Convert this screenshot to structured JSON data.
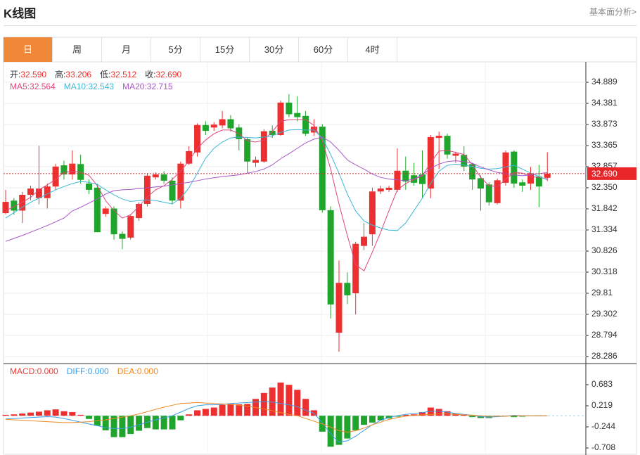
{
  "header": {
    "title": "K线图",
    "link": "基本面分析>"
  },
  "tabs": [
    "日",
    "周",
    "月",
    "5分",
    "15分",
    "30分",
    "60分",
    "4时"
  ],
  "active_tab": 0,
  "chart_data": [
    {
      "type": "candlestick",
      "legend": [
        {
          "name": "开:",
          "label": "32.590"
        },
        {
          "name": "高:",
          "label": "33.206"
        },
        {
          "name": "低:",
          "label": "32.512"
        },
        {
          "name": "收:",
          "label": "32.690"
        }
      ],
      "up_color": "#ee2f2f",
      "down_color": "#1fa52b",
      "open": [
        31.74,
        32.04,
        31.8,
        32.18,
        32.1,
        32.1,
        32.38,
        32.89,
        32.67,
        32.92,
        32.45,
        32.35,
        31.72,
        31.85,
        31.24,
        31.15,
        31.62,
        31.96,
        32.6,
        32.67,
        32.52,
        32.04,
        32.93,
        33.2,
        33.86,
        33.8,
        33.85,
        34.0,
        33.8,
        33.52,
        32.95,
        32.98,
        33.72,
        33.62,
        34.4,
        34.15,
        34.08,
        33.68,
        33.82,
        31.81,
        28.86,
        30.06,
        29.81,
        30.95,
        31.23,
        32.26,
        32.3,
        32.3,
        32.76,
        32.65,
        32.67,
        32.33,
        33.55,
        33.6,
        33.12,
        33.14,
        32.92,
        32.58,
        32.43,
        31.98,
        32.47,
        33.22,
        32.48,
        32.45,
        32.62,
        32.59
      ],
      "high": [
        32.3,
        32.1,
        32.25,
        32.4,
        33.36,
        32.45,
        32.93,
        33.0,
        33.25,
        33.15,
        32.55,
        32.45,
        31.9,
        31.9,
        31.3,
        31.7,
        32.0,
        32.7,
        32.72,
        32.75,
        32.6,
        32.98,
        33.35,
        33.9,
        33.95,
        33.93,
        34.2,
        34.1,
        33.88,
        33.55,
        33.1,
        33.76,
        33.85,
        34.45,
        34.6,
        34.55,
        34.2,
        34.0,
        33.88,
        31.9,
        30.6,
        30.31,
        31.05,
        31.5,
        32.35,
        32.4,
        32.4,
        33.3,
        33.1,
        32.95,
        33.25,
        33.62,
        33.7,
        33.65,
        33.22,
        33.35,
        32.95,
        32.65,
        32.48,
        32.57,
        33.25,
        33.25,
        32.55,
        32.85,
        32.9,
        33.206
      ],
      "low": [
        31.71,
        31.7,
        31.5,
        32.05,
        31.95,
        31.85,
        32.3,
        32.55,
        32.55,
        32.45,
        32.2,
        31.28,
        31.65,
        31.1,
        30.87,
        31.1,
        31.55,
        31.9,
        32.55,
        32.45,
        31.95,
        31.85,
        32.9,
        33.1,
        33.62,
        33.72,
        33.78,
        33.7,
        33.25,
        32.7,
        32.85,
        32.95,
        33.55,
        33.6,
        34.05,
        33.95,
        33.6,
        33.6,
        31.75,
        29.2,
        28.4,
        29.55,
        29.3,
        30.85,
        30.95,
        32.2,
        32.25,
        32.25,
        32.3,
        32.4,
        32.1,
        32.1,
        32.8,
        33.05,
        32.95,
        32.75,
        32.3,
        31.8,
        31.92,
        31.95,
        32.4,
        32.35,
        32.25,
        32.3,
        31.88,
        32.512
      ],
      "close": [
        32.01,
        31.8,
        32.18,
        32.33,
        32.33,
        32.38,
        32.86,
        32.67,
        32.93,
        32.54,
        32.3,
        31.28,
        31.85,
        31.23,
        31.12,
        31.67,
        31.96,
        32.64,
        32.67,
        32.52,
        32.04,
        32.93,
        33.23,
        33.86,
        33.72,
        33.87,
        34.0,
        33.78,
        33.52,
        32.98,
        33.02,
        33.71,
        33.62,
        34.4,
        34.12,
        34.05,
        33.65,
        33.82,
        31.81,
        29.54,
        30.06,
        29.76,
        31.0,
        31.17,
        32.26,
        32.33,
        32.35,
        32.76,
        32.5,
        32.47,
        32.44,
        33.57,
        33.6,
        33.15,
        33.17,
        32.86,
        32.55,
        32.33,
        32.0,
        32.53,
        33.2,
        32.45,
        32.4,
        32.7,
        32.38,
        32.69
      ],
      "series": [
        {
          "name": "MA5:",
          "label": "32.564",
          "color": "#e0457b",
          "values": [
            31.79,
            31.9,
            32.0,
            32.12,
            32.3,
            32.42,
            32.55,
            32.72,
            32.75,
            32.72,
            32.65,
            32.4,
            32.04,
            31.8,
            31.62,
            31.7,
            31.9,
            32.13,
            32.3,
            32.4,
            32.55,
            32.75,
            33.0,
            33.3,
            33.5,
            33.65,
            33.74,
            33.74,
            33.65,
            33.48,
            33.45,
            33.5,
            33.7,
            33.95,
            33.99,
            33.99,
            33.99,
            33.85,
            33.48,
            32.8,
            31.96,
            31.2,
            30.5,
            30.35,
            30.8,
            31.28,
            31.8,
            32.3,
            32.45,
            32.55,
            32.64,
            32.95,
            33.23,
            33.25,
            33.2,
            33.15,
            32.9,
            32.6,
            32.4,
            32.38,
            32.55,
            32.72,
            32.7,
            32.62,
            32.6,
            32.564
          ]
        },
        {
          "name": "MA10:",
          "label": "32.543",
          "color": "#3bb8d6",
          "values": [
            31.62,
            31.75,
            31.88,
            32.0,
            32.1,
            32.2,
            32.3,
            32.38,
            32.45,
            32.5,
            32.48,
            32.43,
            32.3,
            32.18,
            32.08,
            32.02,
            32.04,
            32.06,
            32.04,
            32.0,
            31.96,
            32.1,
            32.35,
            32.7,
            33.06,
            33.3,
            33.45,
            33.55,
            33.57,
            33.56,
            33.55,
            33.57,
            33.6,
            33.68,
            33.74,
            33.75,
            33.74,
            33.74,
            33.55,
            33.15,
            32.7,
            32.2,
            31.79,
            31.55,
            31.45,
            31.38,
            31.33,
            31.32,
            31.5,
            31.8,
            32.1,
            32.45,
            32.75,
            32.89,
            32.92,
            32.9,
            32.86,
            32.82,
            32.8,
            32.81,
            32.85,
            32.89,
            32.8,
            32.7,
            32.62,
            32.543
          ]
        },
        {
          "name": "MA20:",
          "label": "32.715",
          "color": "#a855c8",
          "values": [
            31.06,
            31.13,
            31.2,
            31.28,
            31.36,
            31.44,
            31.53,
            31.62,
            31.79,
            31.88,
            31.98,
            32.08,
            32.2,
            32.28,
            32.3,
            32.31,
            32.33,
            32.35,
            32.37,
            32.39,
            32.42,
            32.45,
            32.48,
            32.52,
            32.56,
            32.59,
            32.62,
            32.64,
            32.66,
            32.7,
            32.74,
            32.8,
            32.9,
            33.05,
            33.17,
            33.3,
            33.43,
            33.52,
            33.57,
            33.45,
            33.25,
            33.02,
            32.9,
            32.8,
            32.68,
            32.6,
            32.56,
            32.54,
            32.52,
            32.56,
            32.66,
            32.82,
            32.92,
            32.98,
            33.0,
            32.98,
            32.94,
            32.85,
            32.78,
            32.72,
            32.69,
            32.66,
            32.64,
            32.66,
            32.69,
            32.715
          ]
        }
      ],
      "ylim": [
        28.117,
        35.38
      ],
      "yticks": [
        34.889,
        34.381,
        33.873,
        33.365,
        32.857,
        {
          "value": 32.35,
          "label": "32.350"
        },
        31.842,
        31.334,
        30.826,
        30.318,
        29.81,
        29.302,
        28.794,
        28.286
      ],
      "last_price": {
        "value": 32.69,
        "label": "32.690"
      },
      "last_price_color": "#e8262a",
      "grid": true
    },
    {
      "type": "macd",
      "up_color": "#ee2f2f",
      "down_color": "#1fa52b",
      "series": [
        {
          "name": "MACD:",
          "label": "0.000",
          "color": "#e8413a",
          "values": [
            0.02,
            0.03,
            0.05,
            0.07,
            0.09,
            0.12,
            0.14,
            0.1,
            0.08,
            0.02,
            -0.07,
            -0.22,
            -0.32,
            -0.47,
            -0.47,
            -0.4,
            -0.33,
            -0.27,
            -0.3,
            -0.3,
            -0.3,
            -0.1,
            0.03,
            0.12,
            0.15,
            0.18,
            0.24,
            0.26,
            0.25,
            0.26,
            0.37,
            0.5,
            0.62,
            0.73,
            0.68,
            0.57,
            0.37,
            0.12,
            -0.35,
            -0.68,
            -0.64,
            -0.5,
            -0.32,
            -0.2,
            -0.15,
            -0.1,
            -0.06,
            -0.02,
            0.02,
            0.03,
            0.08,
            0.18,
            0.15,
            0.1,
            0.05,
            0.02,
            -0.03,
            -0.05,
            -0.05,
            -0.02,
            -0.01,
            -0.03,
            -0.02,
            0,
            -0.01,
            0
          ]
        },
        {
          "name": "DIFF:",
          "label": "0.000",
          "color": "#3b9ce8",
          "values": [
            -0.07,
            -0.06,
            -0.05,
            -0.04,
            -0.03,
            -0.02,
            -0.03,
            -0.06,
            -0.1,
            -0.14,
            -0.18,
            -0.22,
            -0.26,
            -0.28,
            -0.28,
            -0.25,
            -0.2,
            -0.14,
            -0.09,
            -0.05,
            0,
            0.08,
            0.16,
            0.22,
            0.24,
            0.24,
            0.25,
            0.27,
            0.28,
            0.29,
            0.3,
            0.31,
            0.3,
            0.27,
            0.24,
            0.2,
            0.12,
            0.05,
            -0.15,
            -0.4,
            -0.58,
            -0.55,
            -0.45,
            -0.32,
            -0.2,
            -0.1,
            -0.04,
            0,
            0.03,
            0.05,
            0.07,
            0.1,
            0.1,
            0.08,
            0.05,
            0.03,
            0.01,
            -0.02,
            -0.03,
            -0.02,
            -0.01,
            0.01,
            0,
            0,
            0,
            0
          ]
        },
        {
          "name": "DEA:",
          "label": "0.000",
          "color": "#f08a24",
          "values": [
            -0.08,
            -0.09,
            -0.1,
            -0.11,
            -0.12,
            -0.13,
            -0.14,
            -0.15,
            -0.15,
            -0.14,
            -0.13,
            -0.11,
            -0.09,
            -0.06,
            -0.03,
            0,
            0.04,
            0.09,
            0.14,
            0.19,
            0.23,
            0.27,
            0.28,
            0.29,
            0.28,
            0.27,
            0.26,
            0.25,
            0.23,
            0.21,
            0.18,
            0.15,
            0.11,
            0.07,
            0.03,
            0,
            -0.06,
            -0.12,
            -0.18,
            -0.25,
            -0.33,
            -0.36,
            -0.33,
            -0.27,
            -0.2,
            -0.14,
            -0.08,
            -0.04,
            -0.01,
            0.01,
            0.02,
            0.03,
            0.04,
            0.04,
            0.03,
            0.02,
            0.01,
            0,
            -0.01,
            -0.01,
            -0.01,
            0,
            0,
            0,
            0,
            0
          ]
        }
      ],
      "ylim": [
        -0.8625,
        1.1465
      ],
      "yticks": [
        0.683,
        0.219,
        -0.244,
        -0.708
      ]
    }
  ]
}
